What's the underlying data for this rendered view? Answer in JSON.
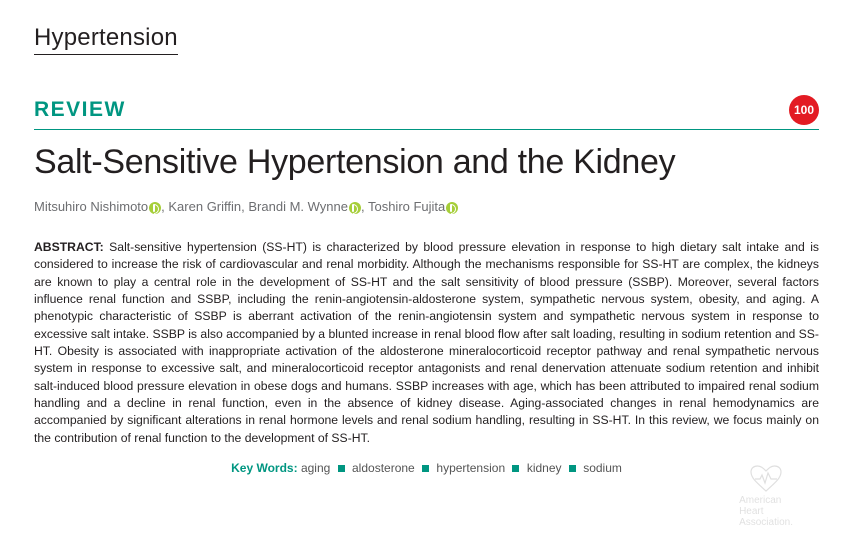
{
  "journal": "Hypertension",
  "section_label": "REVIEW",
  "score_badge": "100",
  "title": "Salt-Sensitive Hypertension and the Kidney",
  "authors": [
    {
      "name": "Mitsuhiro Nishimoto",
      "orcid": true
    },
    {
      "name": "Karen Griffin",
      "orcid": false
    },
    {
      "name": "Brandi M. Wynne",
      "orcid": true
    },
    {
      "name": "Toshiro Fujita",
      "orcid": true
    }
  ],
  "abstract_label": "ABSTRACT:",
  "abstract_text": "Salt-sensitive hypertension (SS-HT) is characterized by blood pressure elevation in response to high dietary salt intake and is considered to increase the risk of cardiovascular and renal morbidity. Although the mechanisms responsible for SS-HT are complex, the kidneys are known to play a central role in the development of SS-HT and the salt sensitivity of blood pressure (SSBP). Moreover, several factors influence renal function and SSBP, including the renin-angiotensin-aldosterone system, sympathetic nervous system, obesity, and aging. A phenotypic characteristic of SSBP is aberrant activation of the renin-angiotensin system and sympathetic nervous system in response to excessive salt intake. SSBP is also accompanied by a blunted increase in renal blood flow after salt loading, resulting in sodium retention and SS-HT. Obesity is associated with inappropriate activation of the aldosterone mineralocorticoid receptor pathway and renal sympathetic nervous system in response to excessive salt, and mineralocorticoid receptor antagonists and renal denervation attenuate sodium retention and inhibit salt-induced blood pressure elevation in obese dogs and humans. SSBP increases with age, which has been attributed to impaired renal sodium handling and a decline in renal function, even in the absence of kidney disease. Aging-associated changes in renal hemodynamics are accompanied by significant alterations in renal hormone levels and renal sodium handling, resulting in SS-HT. In this review, we focus mainly on the contribution of renal function to the development of SS-HT.",
  "keywords_label": "Key Words:",
  "keywords": [
    "aging",
    "aldosterone",
    "hypertension",
    "kidney",
    "sodium"
  ],
  "watermark_lines": [
    "American",
    "Heart",
    "Association."
  ],
  "colors": {
    "accent": "#009681",
    "badge": "#e31b23",
    "orcid": "#a6ce39",
    "text": "#231f20",
    "author_text": "#6d6e71"
  },
  "typography": {
    "journal_fontsize": 24,
    "section_fontsize": 21,
    "title_fontsize": 34,
    "author_fontsize": 13,
    "abstract_fontsize": 12.2,
    "keywords_fontsize": 12
  }
}
